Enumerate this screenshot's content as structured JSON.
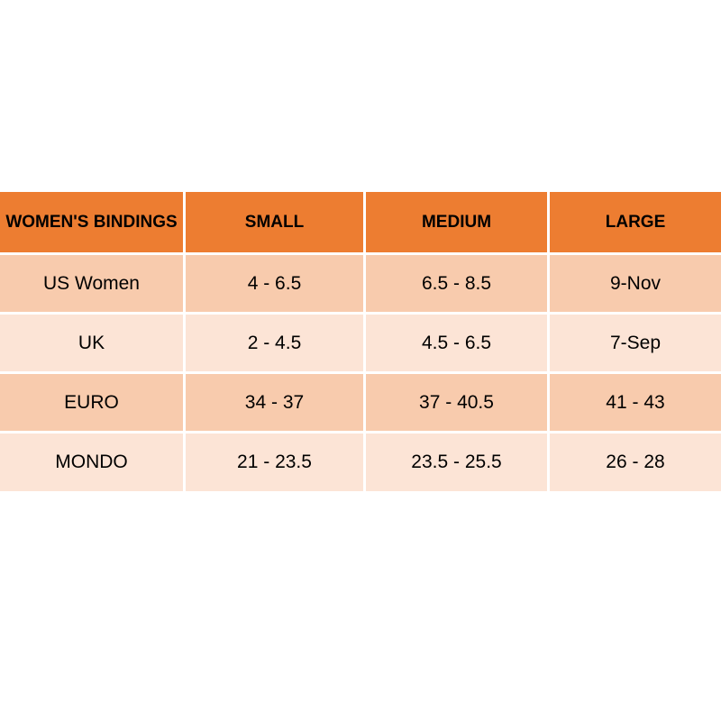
{
  "chart_data": {
    "type": "table",
    "title": "WOMEN'S BINDINGS",
    "columns": [
      "WOMEN'S BINDINGS",
      "SMALL",
      "MEDIUM",
      "LARGE"
    ],
    "rows": [
      [
        "US Women",
        "4 - 6.5",
        "6.5 - 8.5",
        "9-Nov"
      ],
      [
        "UK",
        "2 - 4.5",
        "4.5 - 6.5",
        "7-Sep"
      ],
      [
        "EURO",
        "34 - 37",
        "37 - 40.5",
        "41 - 43"
      ],
      [
        "MONDO",
        "21 - 23.5",
        "23.5 - 25.5",
        "26 - 28"
      ]
    ]
  },
  "table": {
    "header_label": "WOMEN'S BINDINGS",
    "column_headers": [
      "SMALL",
      "MEDIUM",
      "LARGE"
    ],
    "rows": [
      {
        "label": "US Women",
        "values": [
          "4 - 6.5",
          "6.5 - 8.5",
          "9-Nov"
        ]
      },
      {
        "label": "UK",
        "values": [
          "2 - 4.5",
          "4.5 - 6.5",
          "7-Sep"
        ]
      },
      {
        "label": "EURO",
        "values": [
          "34 - 37",
          "37 - 40.5",
          "41 - 43"
        ]
      },
      {
        "label": "MONDO",
        "values": [
          "21 - 23.5",
          "23.5 - 25.5",
          "26 - 28"
        ]
      }
    ],
    "colors": {
      "header_bg": "#ED7D31",
      "row_dark_bg": "#F8CBAD",
      "row_light_bg": "#FCE4D6",
      "divider": "#FFFFFF",
      "text": "#000000"
    }
  }
}
